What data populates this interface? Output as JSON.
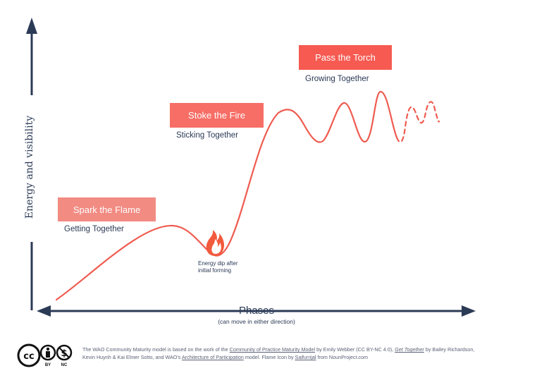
{
  "axes": {
    "y_label": "Energy and visibility",
    "x_label": "Phases",
    "x_sublabel": "(can move in either direction)"
  },
  "stages": [
    {
      "title": "Spark the Flame",
      "subtitle": "Getting Together",
      "color": "#f28b82"
    },
    {
      "title": "Stoke the Fire",
      "subtitle": "Sticking Together",
      "color": "#f66e66"
    },
    {
      "title": "Pass the Torch",
      "subtitle": "Growing Together",
      "color": "#f65a51"
    }
  ],
  "annotations": {
    "dip_line1": "Energy dip after",
    "dip_line2": "initial forming"
  },
  "footer": {
    "t1": "The WAO Community Maturity model is based on the work of the ",
    "link1": "Community of Practice Maturity Model",
    "t2": " by Emily Webber (CC BY-NC 4.0), ",
    "link2": "Get Together",
    "t3": " by Bailey Richardson,",
    "t4": "Kevin Huynh & Kai Elmer Sotto, and WAO's ",
    "link3": "Architecture of Participation",
    "t5": " model. Flame Icon by ",
    "link4": "Saifurrijal",
    "t6": " from NounProject.com",
    "license_by": "BY",
    "license_nc": "NC"
  },
  "colors": {
    "curve": "#ef5b50",
    "axis": "#2b3a55",
    "flame": "#f25a3c"
  },
  "icons": [
    "flame-icon",
    "cc-icon",
    "by-icon",
    "nc-icon"
  ]
}
